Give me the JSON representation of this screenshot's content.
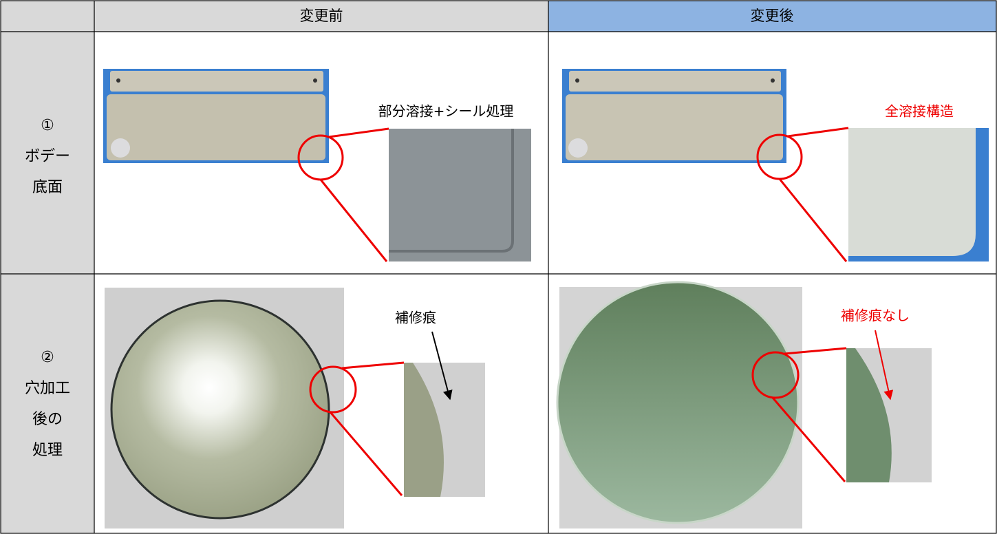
{
  "table": {
    "header": [
      "変更前",
      "変更後"
    ],
    "rows": [
      {
        "label": [
          "①",
          "ボデー",
          "底面"
        ],
        "before": "部分溶接+シール処理",
        "after": "全溶接構造"
      },
      {
        "label": [
          "②",
          "穴加工",
          "後の",
          "処理"
        ],
        "before": "補修痕",
        "after": "補修痕なし"
      }
    ]
  }
}
